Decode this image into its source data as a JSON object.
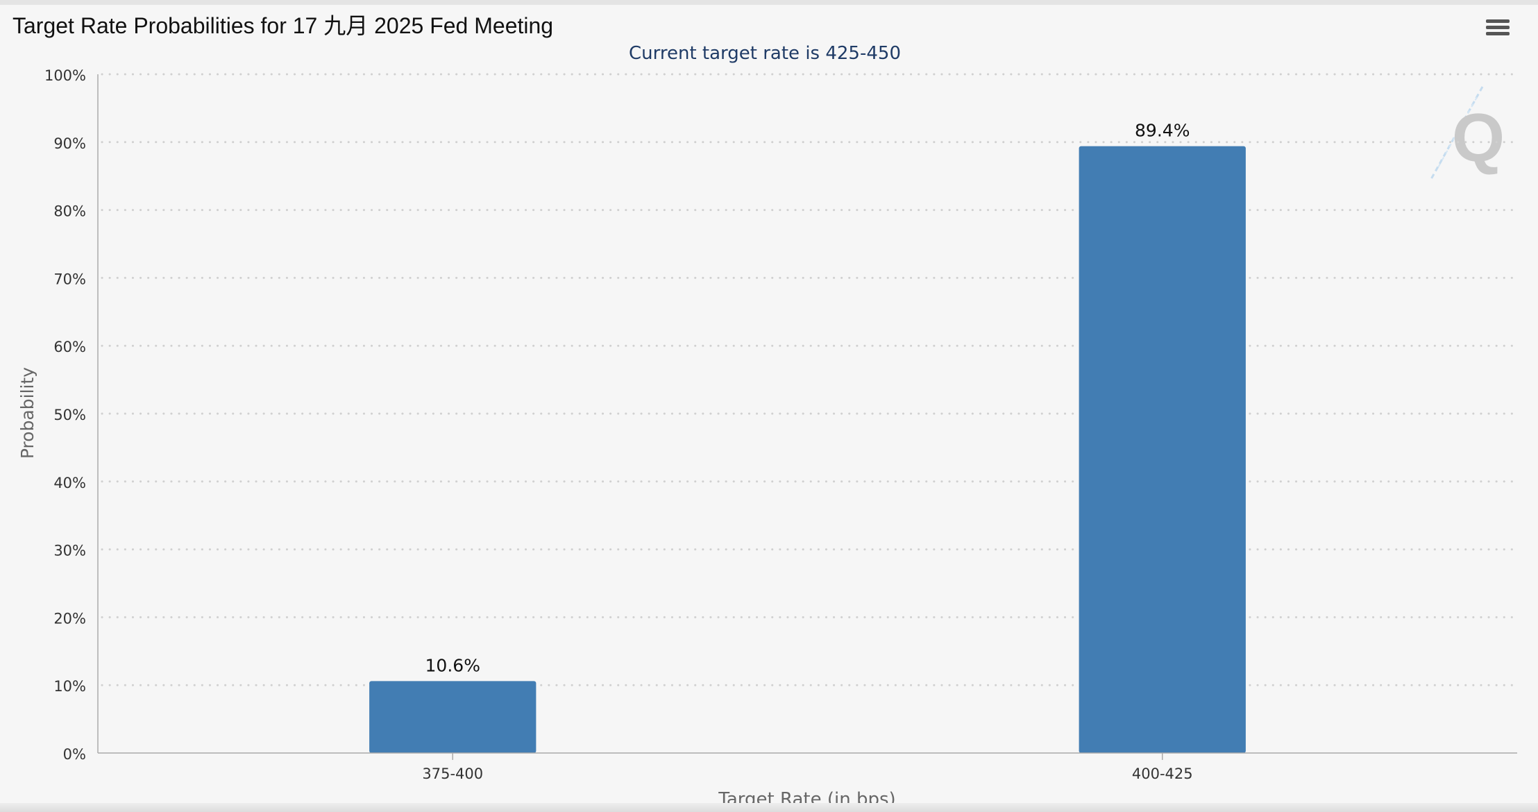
{
  "header": {
    "title": "Target Rate Probabilities for 17 九月 2025 Fed Meeting",
    "menu_icon": "hamburger-menu-icon",
    "watermark_letter": "Q"
  },
  "chart_data": {
    "type": "bar",
    "title": "Target Rate Probabilities for 17 九月 2025 Fed Meeting",
    "subtitle": "Current target rate is 425-450",
    "xlabel": "Target Rate (in bps)",
    "ylabel": "Probability",
    "categories": [
      "375-400",
      "400-425"
    ],
    "values": [
      10.6,
      89.4
    ],
    "data_labels": [
      "10.6%",
      "89.4%"
    ],
    "ylim": [
      0,
      100
    ],
    "yticks": [
      0,
      10,
      20,
      30,
      40,
      50,
      60,
      70,
      80,
      90,
      100
    ],
    "ytick_labels": [
      "0%",
      "10%",
      "20%",
      "30%",
      "40%",
      "50%",
      "60%",
      "70%",
      "80%",
      "90%",
      "100%"
    ],
    "grid": "horizontal dotted",
    "legend": "none",
    "colors": {
      "bar": "#427db3",
      "subtitle": "#1f3b66",
      "axis_label": "#666666",
      "tick_label": "#333333",
      "grid": "#d0d0d0",
      "background": "#f6f6f6"
    }
  }
}
